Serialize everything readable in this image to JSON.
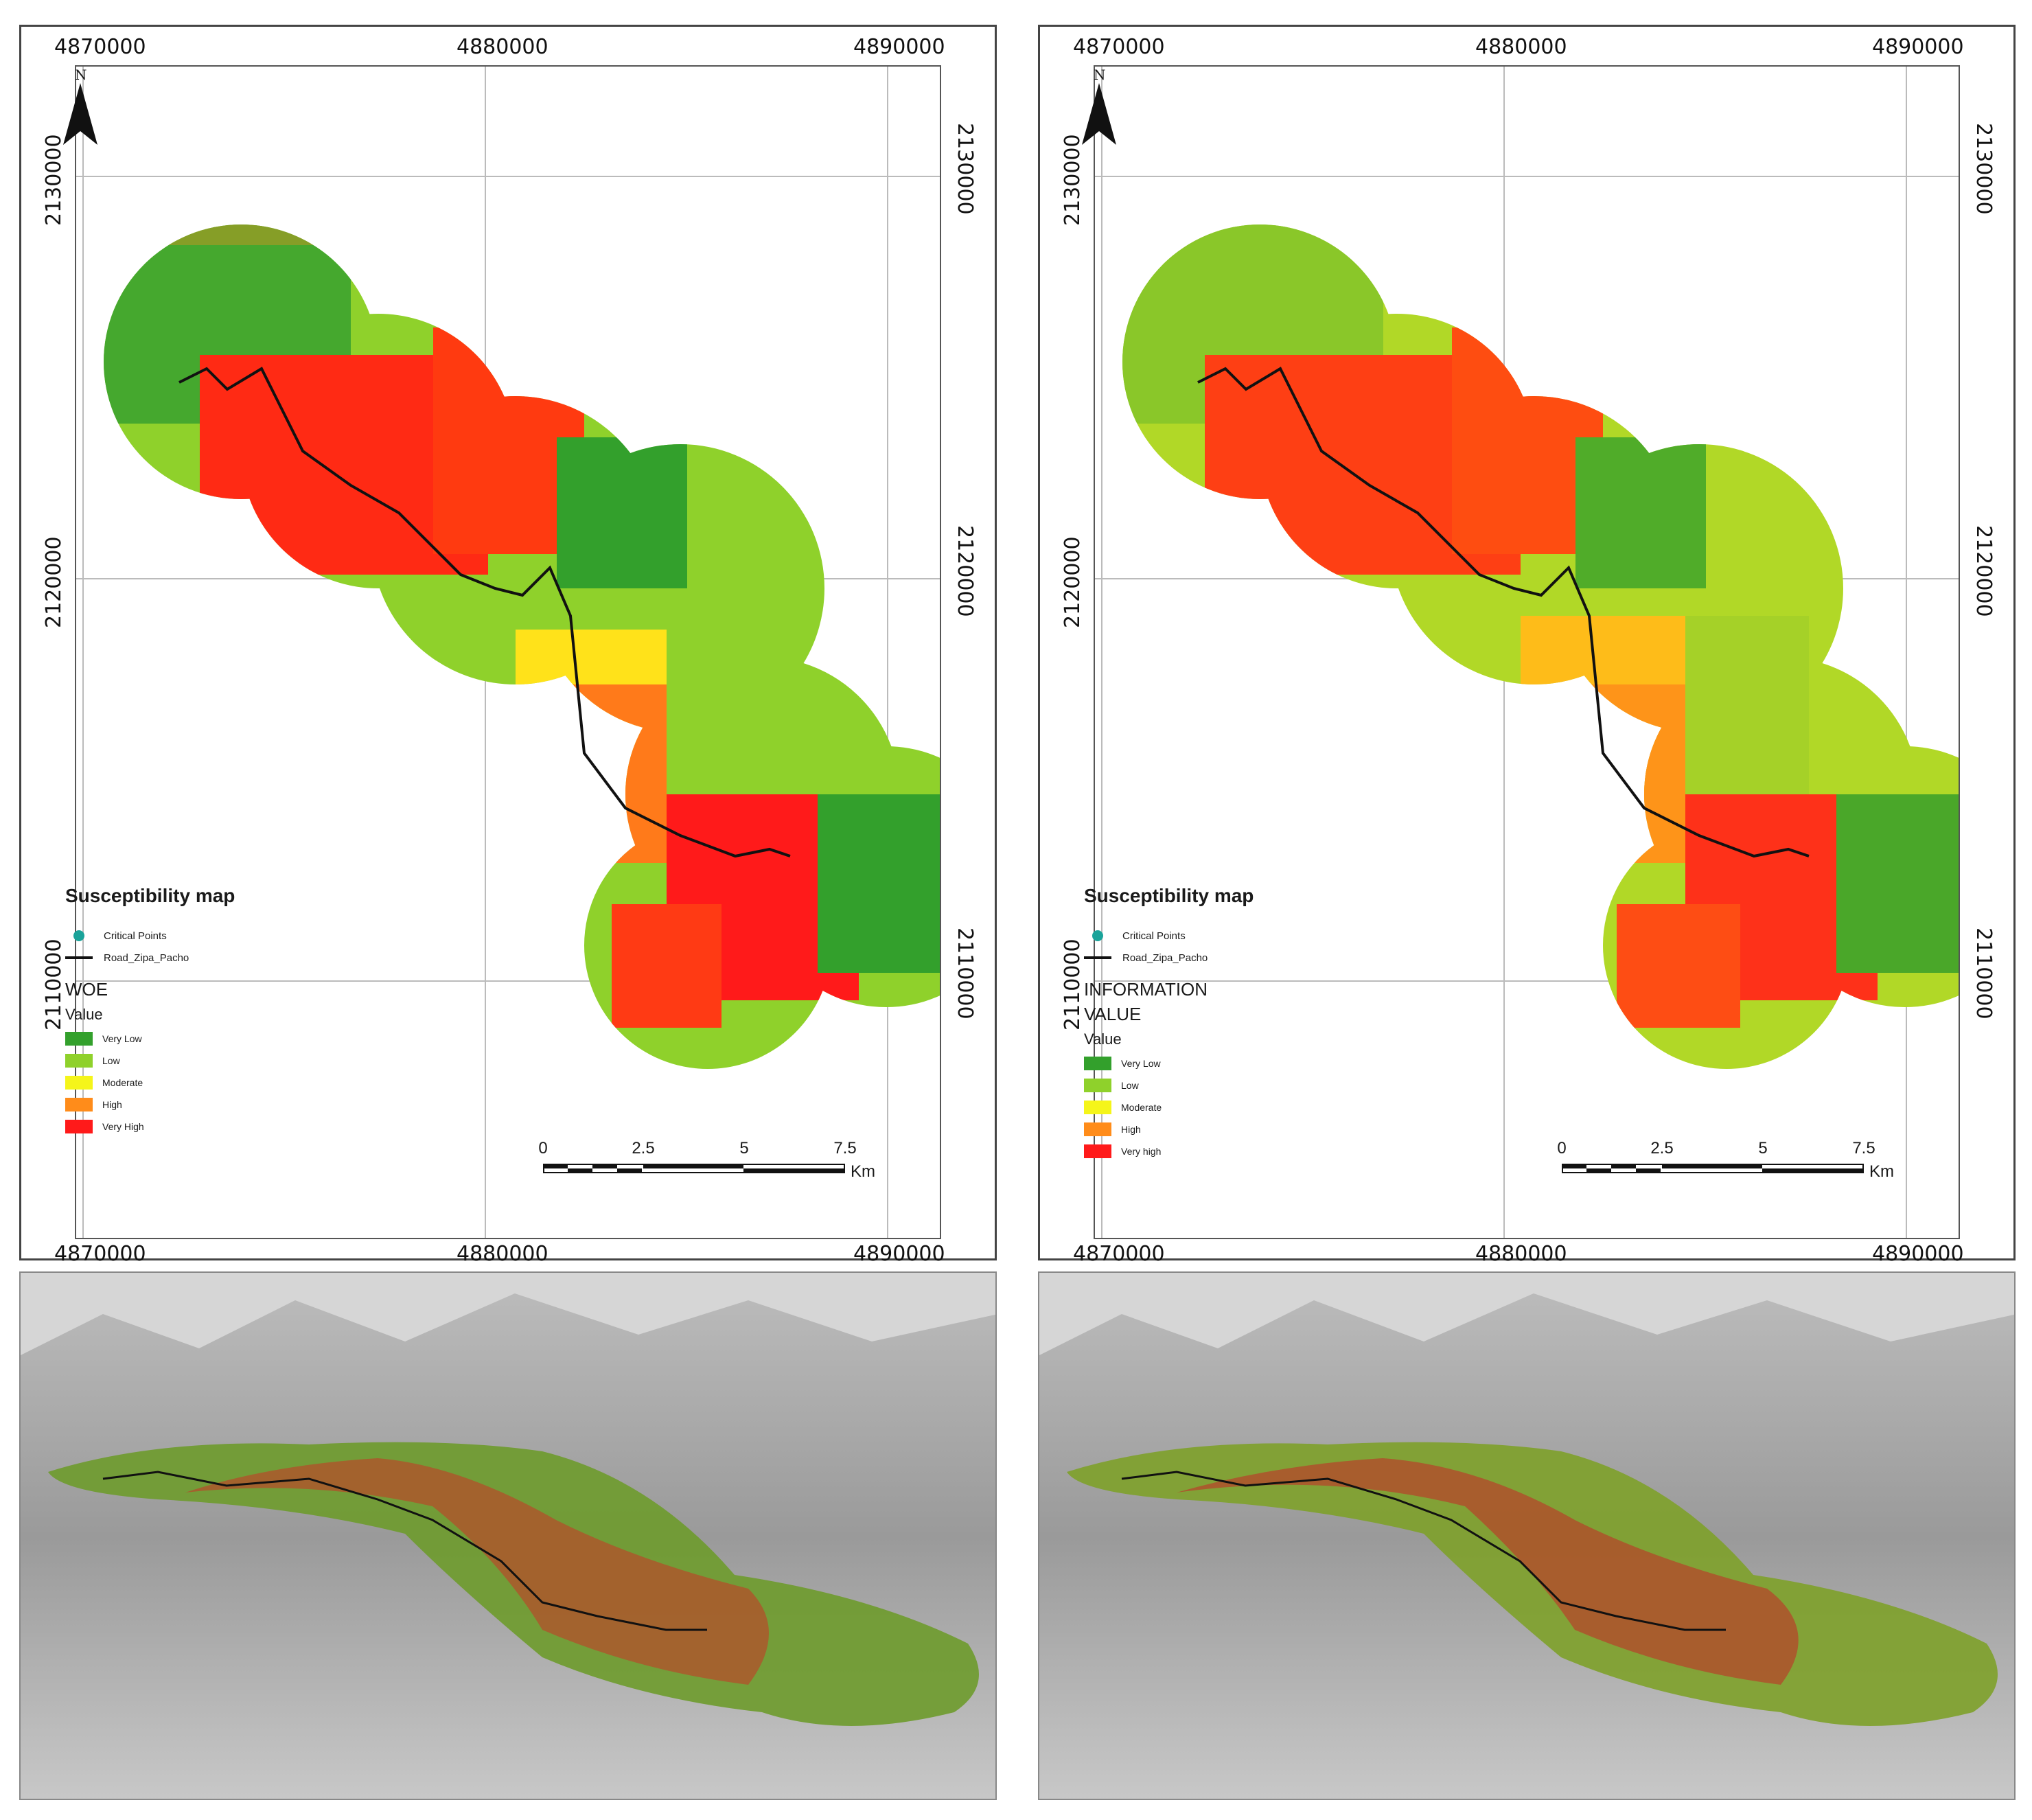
{
  "panels": [
    {
      "id": "woe",
      "legend_title": "Susceptibility map",
      "symbols": [
        {
          "label": "Critical Points",
          "icon": "critical-point-icon",
          "color": "#1aa39a"
        },
        {
          "label": "Road_Zipa_Pacho",
          "icon": "road-line-icon",
          "color": "#111111"
        }
      ],
      "method": "WOE",
      "value_label": "Value",
      "classes": [
        {
          "label": "Very Low",
          "color": "#33a02c"
        },
        {
          "label": "Low",
          "color": "#8fd12b"
        },
        {
          "label": "Moderate",
          "color": "#f5f51a"
        },
        {
          "label": "High",
          "color": "#ff8c1a"
        },
        {
          "label": "Very High",
          "color": "#ff1a1a"
        }
      ]
    },
    {
      "id": "iv",
      "legend_title": "Susceptibility map",
      "symbols": [
        {
          "label": "Critical Points",
          "icon": "critical-point-icon",
          "color": "#1aa39a"
        },
        {
          "label": "Road_Zipa_Pacho",
          "icon": "road-line-icon",
          "color": "#111111"
        }
      ],
      "method": "INFORMATION VALUE",
      "value_label": "Value",
      "classes": [
        {
          "label": "Very Low",
          "color": "#33a02c"
        },
        {
          "label": "Low",
          "color": "#8fd12b"
        },
        {
          "label": "Moderate",
          "color": "#f5f51a"
        },
        {
          "label": "High",
          "color": "#ff8c1a"
        },
        {
          "label": "Very high",
          "color": "#ff1a1a"
        }
      ]
    }
  ],
  "grid": {
    "x_ticks": [
      "4870000",
      "4880000",
      "4890000"
    ],
    "y_ticks": [
      "2130000",
      "2120000",
      "2110000"
    ]
  },
  "north_arrow": {
    "letter": "N",
    "icon": "north-arrow-icon"
  },
  "scalebar": {
    "ticks": [
      "0",
      "2.5",
      "5",
      "7.5"
    ],
    "unit": "Km"
  }
}
